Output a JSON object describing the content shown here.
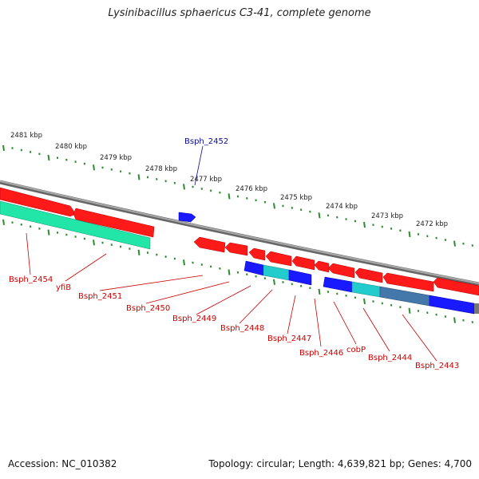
{
  "title": "Lysinibacillus sphaericus C3-41, complete genome",
  "footer": {
    "accession": "Accession: NC_010382",
    "topology": "Topology: circular; Length: 4,639,821 bp; Genes: 4,700"
  },
  "colors": {
    "forward_gene": "#ff1a1a",
    "reverse_gene": "#1a1aff",
    "rna_gene": "#22cccc",
    "pseudo_gene": "#20e0a0",
    "backbone": "#888888",
    "tick": "#2e8b2e",
    "label_forward": "#0a0a99",
    "label_reverse": "#cc0000"
  },
  "kbp_ticks": [
    "2481 kbp",
    "2480 kbp",
    "2479 kbp",
    "2478 kbp",
    "2477 kbp",
    "2476 kbp",
    "2475 kbp",
    "2474 kbp",
    "2473 kbp",
    "2472 kbp"
  ],
  "gene_labels": {
    "forward": [
      "Bsph_2452"
    ],
    "reverse": [
      "Bsph_2454",
      "yfiB",
      "Bsph_2451",
      "Bsph_2450",
      "Bsph_2449",
      "Bsph_2448",
      "Bsph_2447",
      "Bsph_2446",
      "cobP",
      "Bsph_2444",
      "Bsph_2443"
    ]
  }
}
